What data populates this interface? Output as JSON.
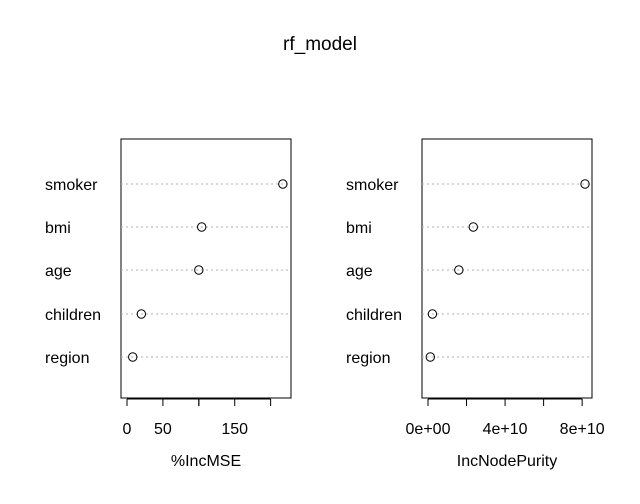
{
  "title": "rf_model",
  "chart_data": [
    {
      "type": "scatter",
      "subtype": "dotchart",
      "categories": [
        "smoker",
        "bmi",
        "age",
        "children",
        "region"
      ],
      "values": [
        217,
        104,
        100,
        20,
        8
      ],
      "xlabel": "%IncMSE",
      "xticks": [
        0,
        50,
        150
      ],
      "tick_labels": [
        "0",
        "50",
        "150"
      ],
      "xlim": [
        0,
        220
      ],
      "grid": "dotted horizontal"
    },
    {
      "type": "scatter",
      "subtype": "dotchart",
      "categories": [
        "smoker",
        "bmi",
        "age",
        "children",
        "region"
      ],
      "values": [
        81500000000,
        23500000000,
        16000000000,
        2300000000,
        1200000000
      ],
      "xlabel": "IncNodePurity",
      "xticks": [
        0,
        40000000000,
        80000000000
      ],
      "tick_labels": [
        "0e+00",
        "4e+10",
        "8e+10"
      ],
      "xlim": [
        0,
        82000000000
      ],
      "grid": "dotted horizontal"
    }
  ]
}
